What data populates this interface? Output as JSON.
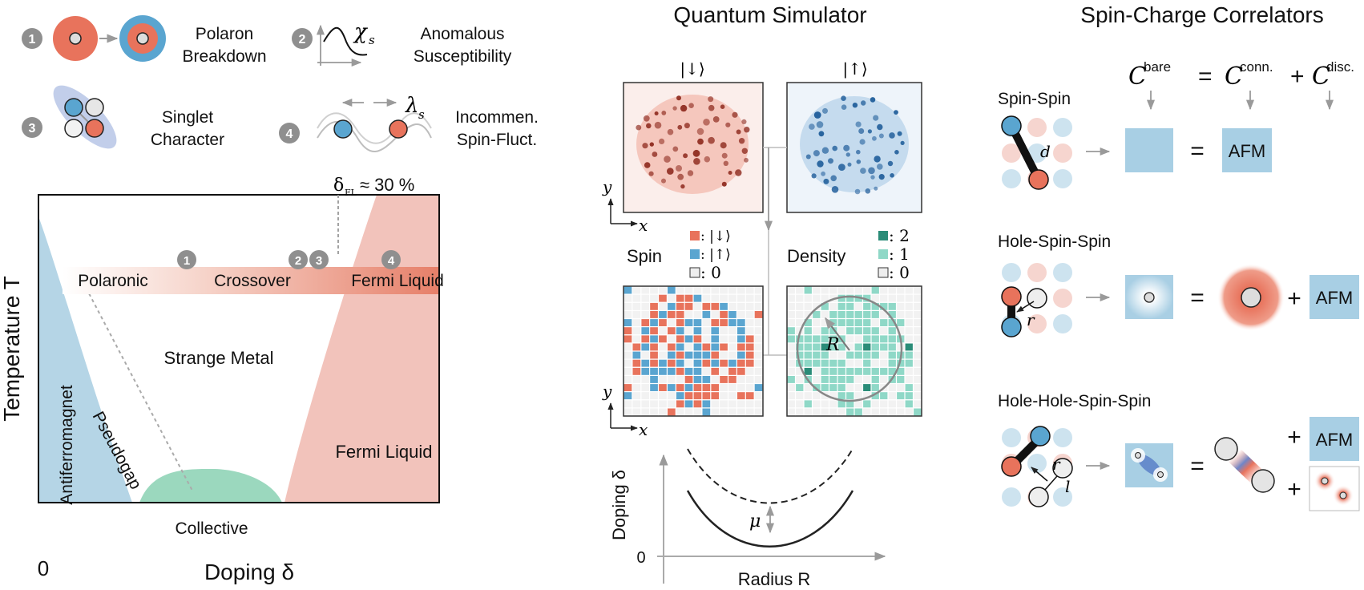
{
  "colors": {
    "salmon": "#e8735c",
    "salmon_light": "#f2c3bb",
    "blue": "#5aa5d0",
    "blue_light": "#b8d7e8",
    "teal": "#8fd8c7",
    "teal_dark": "#2a8c78",
    "gray_badge": "#8f8f8f",
    "arrow_gray": "#9a9a9a"
  },
  "legend_items": [
    {
      "num": "1",
      "label_l1": "Polaron",
      "label_l2": "Breakdown"
    },
    {
      "num": "2",
      "label_l1": "Anomalous",
      "label_l2": "Susceptibility",
      "symbol": "χ",
      "sub": "s"
    },
    {
      "num": "3",
      "label_l1": "Singlet",
      "label_l2": "Character"
    },
    {
      "num": "4",
      "label_l1": "Incommen.",
      "label_l2": "Spin-Fluct.",
      "symbol": "λ",
      "sub": "s"
    }
  ],
  "phase": {
    "delta_fl_sym": "δ",
    "delta_fl_sub": "FL",
    "delta_fl_value": "≈ 30 %",
    "arrow_labels": [
      "Polaronic",
      "Crossover",
      "Fermi Liquid"
    ],
    "markers": [
      "1",
      "2",
      "3",
      "4"
    ],
    "regions": {
      "strange_metal": "Strange Metal",
      "antiferromagnet": "Antiferromagnet",
      "pseudogap": "Pseudogap",
      "collective": "Collective",
      "fermi_liquid": "Fermi Liquid"
    },
    "y_axis": "Temperature T",
    "x_axis": "Doping δ",
    "x_zero": "0"
  },
  "simulator": {
    "title": "Quantum Simulator",
    "ket_down": "|↓⟩",
    "ket_up": "|↑⟩",
    "axis_x": "x",
    "axis_y": "y",
    "spin_label": "Spin",
    "density_label": "Density",
    "spin_legend": [
      ": |↓⟩",
      ": |↑⟩",
      ": 0"
    ],
    "density_legend": [
      ": 2",
      ": 1",
      ": 0"
    ],
    "radius_symbol": "R",
    "plot": {
      "ylabel": "Doping δ",
      "xlabel": "Radius R",
      "y_zero": "0",
      "mu": "μ"
    }
  },
  "correlators": {
    "title": "Spin-Charge Correlators",
    "eq_bare": "C",
    "eq_bare_sup": "bare",
    "eq_equals": "=",
    "eq_conn": "C",
    "eq_conn_sup": "conn.",
    "eq_plus": "+",
    "eq_disc": "C",
    "eq_disc_sup": "disc.",
    "rows": [
      {
        "title": "Spin-Spin",
        "dist": "d",
        "afm": "AFM"
      },
      {
        "title": "Hole-Spin-Spin",
        "dist": "r",
        "afm": "AFM"
      },
      {
        "title": "Hole-Hole-Spin-Spin",
        "dist": "r",
        "dist2": "l",
        "afm": "AFM"
      }
    ]
  }
}
